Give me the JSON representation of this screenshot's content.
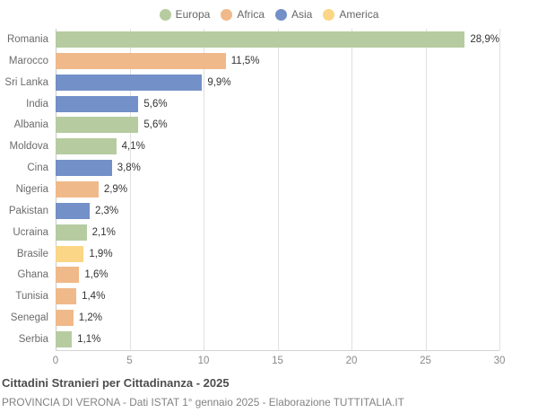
{
  "chart_data": {
    "type": "bar",
    "orientation": "horizontal",
    "title": "Cittadini Stranieri per Cittadinanza - 2025",
    "subtitle": "PROVINCIA DI VERONA - Dati ISTAT 1° gennaio 2025 - Elaborazione TUTTITALIA.IT",
    "xlim": [
      0,
      30
    ],
    "x_ticks": [
      0,
      5,
      10,
      15,
      20,
      25,
      30
    ],
    "grid": true,
    "legend_position": "top",
    "legend": [
      {
        "label": "Europa",
        "color": "#b6cca0"
      },
      {
        "label": "Africa",
        "color": "#f0b98a"
      },
      {
        "label": "Asia",
        "color": "#7390c8"
      },
      {
        "label": "America",
        "color": "#fad686"
      }
    ],
    "categories": [
      "Romania",
      "Marocco",
      "Sri Lanka",
      "India",
      "Albania",
      "Moldova",
      "Cina",
      "Nigeria",
      "Pakistan",
      "Ucraina",
      "Brasile",
      "Ghana",
      "Tunisia",
      "Senegal",
      "Serbia"
    ],
    "values": [
      28.9,
      11.5,
      9.9,
      5.6,
      5.6,
      4.1,
      3.8,
      2.9,
      2.3,
      2.1,
      1.9,
      1.6,
      1.4,
      1.2,
      1.1
    ],
    "value_labels": [
      "28,9%",
      "11,5%",
      "9,9%",
      "5,6%",
      "5,6%",
      "4,1%",
      "3,8%",
      "2,9%",
      "2,3%",
      "2,1%",
      "1,9%",
      "1,6%",
      "1,4%",
      "1,2%",
      "1,1%"
    ],
    "groups": [
      "Europa",
      "Africa",
      "Asia",
      "Asia",
      "Europa",
      "Europa",
      "Asia",
      "Africa",
      "Asia",
      "Europa",
      "America",
      "Africa",
      "Africa",
      "Africa",
      "Europa"
    ],
    "group_colors": {
      "Europa": "#b6cca0",
      "Africa": "#f0b98a",
      "Asia": "#7390c8",
      "America": "#fad686"
    }
  }
}
